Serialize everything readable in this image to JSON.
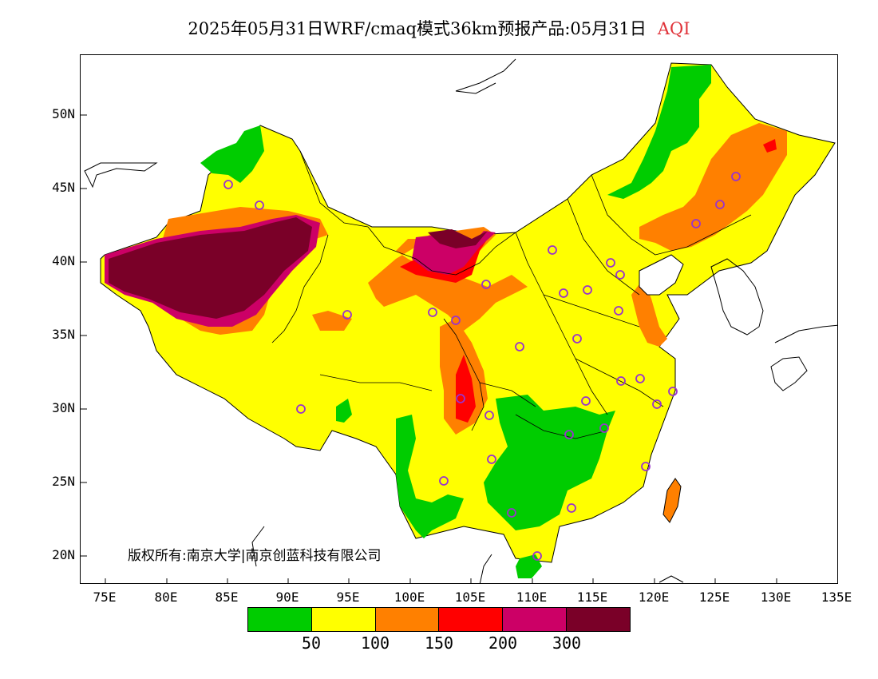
{
  "header": {
    "title": "2025年05月31日WRF/cmaq模式36km预报产品:05月31日",
    "pollutant": "AQI"
  },
  "map": {
    "lat_labels": [
      "50N",
      "45N",
      "40N",
      "35N",
      "30N",
      "25N",
      "20N"
    ],
    "lon_labels": [
      "75E",
      "80E",
      "85E",
      "90E",
      "95E",
      "100E",
      "105E",
      "110E",
      "115E",
      "120E",
      "125E",
      "130E",
      "135E"
    ],
    "copyright": "版权所有:南京大学|南京创蓝科技有限公司"
  },
  "legend": {
    "colors": [
      "#00cc00",
      "#ffff00",
      "#ff8000",
      "#ff0000",
      "#cc0066",
      "#7a0028"
    ],
    "labels": [
      "50",
      "100",
      "150",
      "200",
      "300"
    ]
  }
}
